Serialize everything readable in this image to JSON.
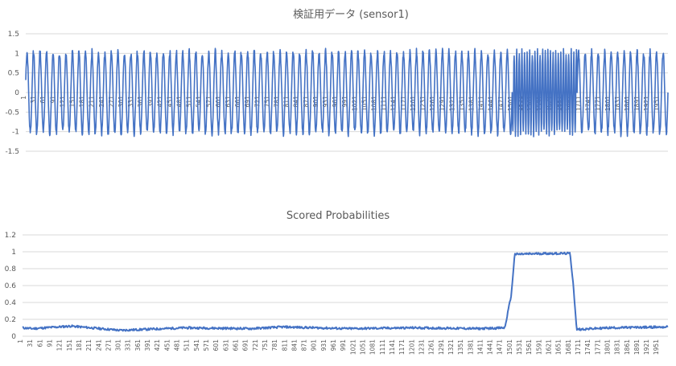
{
  "chart_data": [
    {
      "type": "line",
      "title": "検証用データ (sensor1)",
      "series": [
        {
          "color": "#4472C4"
        }
      ],
      "x": {
        "start": 1,
        "end": 1980,
        "tick_step": 30
      },
      "ylim": [
        -1.5,
        1.5
      ],
      "yticks": [
        1.5,
        1,
        0.5,
        0,
        -0.5,
        -1,
        -1.5
      ],
      "ytick_labels": [
        "1.5",
        "1",
        "0.5",
        "0",
        "-0.5",
        "-1",
        "-1.5"
      ],
      "grid": true,
      "signal": {
        "description_hidden": false,
        "shape": "sine",
        "amplitude": 1.0,
        "period": 20,
        "noisy_segment": [
          1500,
          1700
        ],
        "noisy_segment_period": 8
      }
    },
    {
      "type": "line",
      "title": "Scored Probabilities",
      "series": [
        {
          "color": "#4472C4"
        }
      ],
      "x": {
        "start": 1,
        "end": 1980,
        "tick_step": 30
      },
      "ylim": [
        0,
        1.2
      ],
      "yticks": [
        1.2,
        1,
        0.8,
        0.6,
        0.4,
        0.2,
        0
      ],
      "ytick_labels": [
        "1.2",
        "1",
        "0.8",
        "0.6",
        "0.4",
        "0.2",
        "0"
      ],
      "grid": true,
      "shape": [
        [
          1,
          0.1
        ],
        [
          30,
          0.09
        ],
        [
          150,
          0.12
        ],
        [
          300,
          0.07
        ],
        [
          500,
          0.1
        ],
        [
          700,
          0.09
        ],
        [
          800,
          0.11
        ],
        [
          1000,
          0.09
        ],
        [
          1200,
          0.1
        ],
        [
          1400,
          0.09
        ],
        [
          1480,
          0.1
        ],
        [
          1500,
          0.5
        ],
        [
          1510,
          0.97
        ],
        [
          1600,
          0.98
        ],
        [
          1680,
          0.98
        ],
        [
          1690,
          0.6
        ],
        [
          1700,
          0.08
        ],
        [
          1800,
          0.1
        ],
        [
          1980,
          0.11
        ]
      ]
    }
  ]
}
